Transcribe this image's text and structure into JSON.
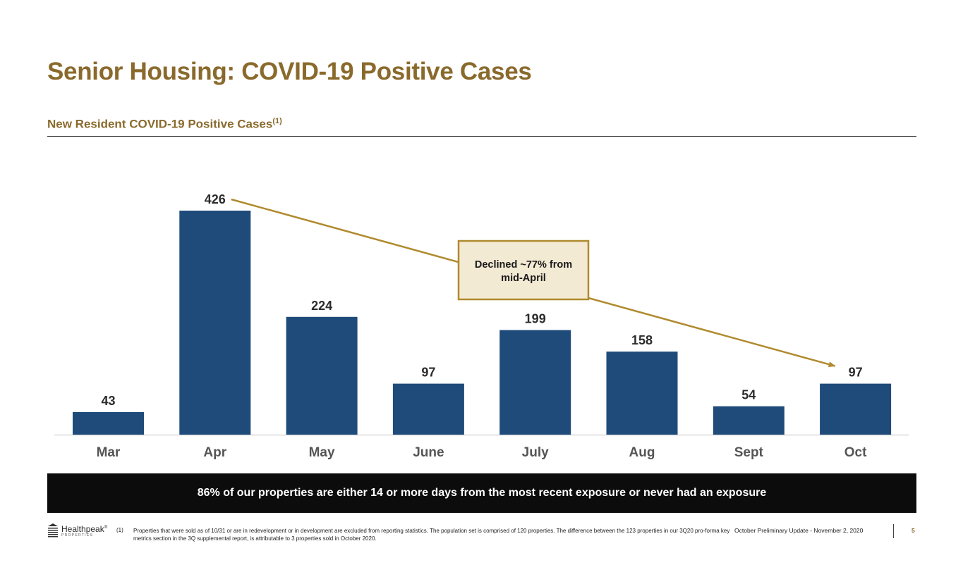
{
  "header": {
    "title": "Senior Housing: COVID-19 Positive Cases",
    "subtitle": "New Resident COVID-19 Positive Cases",
    "subtitle_note": "(1)"
  },
  "chart_data": {
    "type": "bar",
    "title": "New Resident COVID-19 Positive Cases",
    "categories": [
      "Mar",
      "Apr",
      "May",
      "June",
      "July",
      "Aug",
      "Sept",
      "Oct"
    ],
    "values": [
      43,
      426,
      224,
      97,
      199,
      158,
      54,
      97
    ],
    "xlabel": "",
    "ylabel": "",
    "ylim": [
      0,
      426
    ],
    "grid": false,
    "bar_color": "#1f4b7a",
    "annotation": {
      "text_line1": "Declined ~77% from",
      "text_line2": "mid-April",
      "from_category": "Apr",
      "to_category": "Oct",
      "color": "#b08a2e",
      "box_fill": "#f3ead4"
    }
  },
  "banner": {
    "text": "86% of our properties are either 14 or more days from the most recent exposure or never had an exposure"
  },
  "footer": {
    "brand": "Healthpeak",
    "brand_tm": "®",
    "brand_sub": "PROPERTIES",
    "footnote_number": "(1)",
    "footnote_text": "Properties that were sold as of 10/31 or are in redevelopment or in development are excluded from reporting statistics. The population set is comprised of 120 properties. The difference between the 123 properties in our 3Q20 pro-forma key metrics section in the 3Q supplemental report, is attributable to 3 properties sold in October 2020.",
    "update_label": "October Preliminary Update - November 2, 2020",
    "page_number": "5"
  },
  "colors": {
    "gold": "#8a6a2c",
    "navy": "#1f4b7a",
    "banner_bg": "#0c0c0c"
  }
}
